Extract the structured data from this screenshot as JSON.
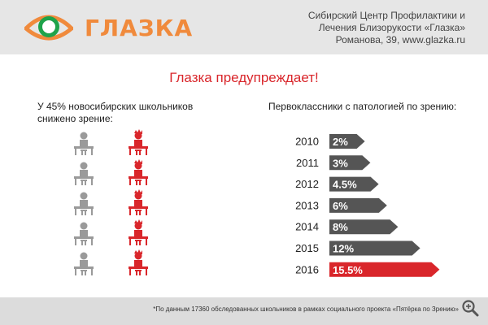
{
  "brand": {
    "name": "ГЛАЗКА",
    "org_lines": [
      "Сибирский Центр Профилактики и",
      "Лечения Близорукости «Глазка»",
      "Романова, 39, www.glazka.ru"
    ]
  },
  "headline": "Глазка предупреждает!",
  "left_label": "У 45% новосибирских школьников снижено зрение:",
  "right_label": "Первоклассники с патологией по  зрению:",
  "footnote": "*По данным 17360 обследованных школьников в рамках социального проекта «Пятёрка по Зрению»",
  "colors": {
    "accent": "#d9262b",
    "gray": "#9a9a9a",
    "bar_gray": "#555555",
    "logo_orange": "#f08a3c",
    "logo_green": "#1ea34a"
  },
  "icons": {
    "logo": "eye-logo-icon",
    "person": "student-at-desk-icon",
    "zoom": "zoom-magnifier-icon"
  },
  "pictogram": {
    "rows": 5,
    "columns": [
      "normal-vision",
      "reduced-vision"
    ]
  },
  "chart_data": {
    "type": "bar",
    "title": "Первоклассники с патологией по  зрению:",
    "categories": [
      "2010",
      "2011",
      "2012",
      "2013",
      "2014",
      "2015",
      "2016"
    ],
    "values": [
      2,
      3,
      4.5,
      6,
      8,
      12,
      15.5
    ],
    "value_labels": [
      "2%",
      "3%",
      "4.5%",
      "6%",
      "8%",
      "12%",
      "15.5%"
    ],
    "highlight": "2016",
    "orientation": "horizontal",
    "unit": "%"
  }
}
